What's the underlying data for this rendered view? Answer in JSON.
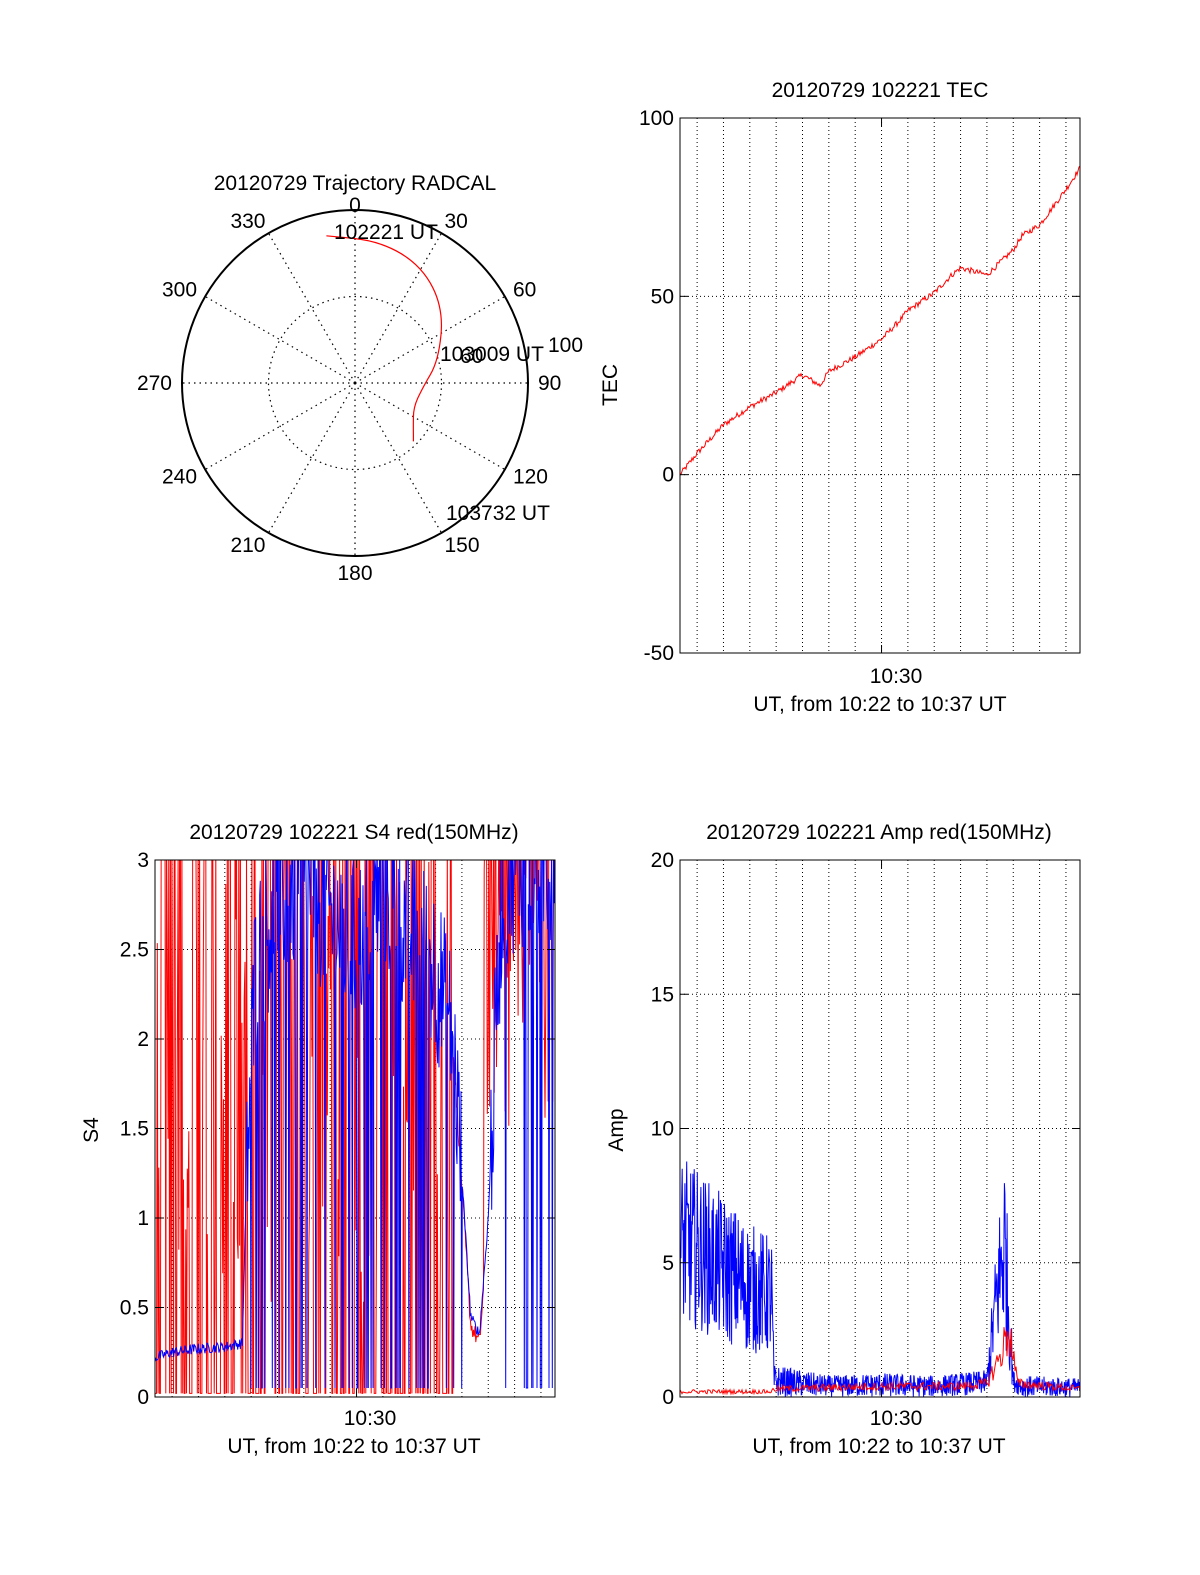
{
  "chart_data": [
    {
      "type": "polar",
      "title": "20120729 Trajectory RADCAL",
      "azimuth_labels": [
        "0",
        "30",
        "60",
        "90",
        "120",
        "150",
        "180",
        "210",
        "240",
        "270",
        "300",
        "330"
      ],
      "elevation_rings": [
        0,
        60
      ],
      "elevation_labels": [
        "60",
        "100"
      ],
      "trajectory_color": "#ff0000",
      "trajectory": [
        {
          "az": 349,
          "el": 12
        },
        {
          "az": 10,
          "el": 15
        },
        {
          "az": 30,
          "el": 20
        },
        {
          "az": 50,
          "el": 30
        },
        {
          "az": 75,
          "el": 45
        },
        {
          "az": 95,
          "el": 55
        },
        {
          "az": 113,
          "el": 57
        },
        {
          "az": 127,
          "el": 52
        },
        {
          "az": 135,
          "el": 47
        }
      ],
      "annotations": [
        {
          "text": "102221 UT",
          "at": "start"
        },
        {
          "text": "103009 UT",
          "at": "middle"
        },
        {
          "text": "103732 UT",
          "at": "end"
        }
      ]
    },
    {
      "type": "line",
      "title": "20120729 102221 TEC",
      "ylabel": "TEC",
      "xlabel": "UT, from 10:22 to 10:37 UT",
      "xtick_label": "10:30",
      "xlim": [
        "10:22:21",
        "10:37:32"
      ],
      "ylim": [
        -50,
        100
      ],
      "yticks": [
        -50,
        0,
        50,
        100
      ],
      "grid": true,
      "series": [
        {
          "color": "#ff0000",
          "x": [
            "10:22:21",
            "10:23:00",
            "10:24:00",
            "10:25:00",
            "10:26:00",
            "10:27:00",
            "10:27:40",
            "10:28:00",
            "10:29:00",
            "10:30:00",
            "10:30:40",
            "10:31:00",
            "10:32:00",
            "10:32:40",
            "10:33:00",
            "10:34:00",
            "10:35:00",
            "10:35:20",
            "10:36:00",
            "10:37:00",
            "10:37:32"
          ],
          "y": [
            0,
            6,
            14,
            19,
            23,
            28,
            25,
            29,
            33,
            38,
            43,
            46,
            51,
            56,
            58,
            56,
            63,
            67,
            70,
            80,
            86
          ]
        }
      ]
    },
    {
      "type": "line",
      "title": "20120729 102221 S4 red(150MHz)",
      "ylabel": "S4",
      "xlabel": "UT, from 10:22 to 10:37 UT",
      "xtick_label": "10:30",
      "xlim": [
        "10:22:21",
        "10:37:32"
      ],
      "ylim": [
        0,
        3
      ],
      "yticks": [
        "0",
        "0.5",
        "1",
        "1.5",
        "2",
        "2.5",
        "3"
      ],
      "grid": true,
      "series": [
        {
          "color": "#ff0000",
          "description_values": "dense spikes 0 to >3 before 10:34; dip ~0.3 near 10:34:30; rises to >3 after 10:35"
        },
        {
          "color": "#0000ff",
          "x": [
            "10:22:21",
            "10:23:00",
            "10:24:00",
            "10:25:00",
            "10:25:40",
            "10:25:50",
            "10:26:10",
            "10:27:00",
            "10:28:00",
            "10:29:00",
            "10:30:00",
            "10:31:00",
            "10:32:00",
            "10:33:00",
            "10:33:40",
            "10:34:20",
            "10:34:40",
            "10:35:00",
            "10:35:30",
            "10:36:00",
            "10:37:32"
          ],
          "y": [
            0.22,
            0.25,
            0.27,
            0.28,
            0.3,
            1.3,
            2.4,
            2.8,
            2.9,
            2.7,
            2.5,
            2.9,
            2.6,
            2.4,
            2.0,
            0.45,
            0.35,
            1.0,
            2.8,
            3.0,
            3.0
          ]
        }
      ]
    },
    {
      "type": "line",
      "title": "20120729 102221 Amp red(150MHz)",
      "ylabel": "Amp",
      "xlabel": "UT, from 10:22 to 10:37 UT",
      "xtick_label": "10:30",
      "xlim": [
        "10:22:21",
        "10:37:32"
      ],
      "ylim": [
        0,
        20
      ],
      "yticks": [
        0,
        5,
        10,
        15,
        20
      ],
      "grid": true,
      "series": [
        {
          "color": "#0000ff",
          "x": [
            "10:22:21",
            "10:23:00",
            "10:24:00",
            "10:25:00",
            "10:25:50",
            "10:25:55",
            "10:28:00",
            "10:30:00",
            "10:32:00",
            "10:34:00",
            "10:34:20",
            "10:34:40",
            "10:35:00",
            "10:35:20",
            "10:37:32"
          ],
          "y_low": [
            2.5,
            2.5,
            2.0,
            1.6,
            1.5,
            0.0,
            0.0,
            0.0,
            0.0,
            0.1,
            1.5,
            2.0,
            0.2,
            0.0,
            0.0
          ],
          "y_high": [
            9.0,
            8.5,
            7.5,
            6.5,
            6.0,
            1.2,
            0.8,
            0.9,
            0.8,
            1.0,
            5.5,
            9.5,
            1.0,
            0.8,
            0.7
          ]
        },
        {
          "color": "#ff0000",
          "x": [
            "10:22:21",
            "10:25:50",
            "10:25:55",
            "10:30:00",
            "10:33:00",
            "10:34:00",
            "10:34:30",
            "10:34:50",
            "10:35:10",
            "10:37:32"
          ],
          "y": [
            0.2,
            0.2,
            0.3,
            0.4,
            0.4,
            0.5,
            1.5,
            2.5,
            0.5,
            0.3
          ]
        }
      ]
    }
  ]
}
